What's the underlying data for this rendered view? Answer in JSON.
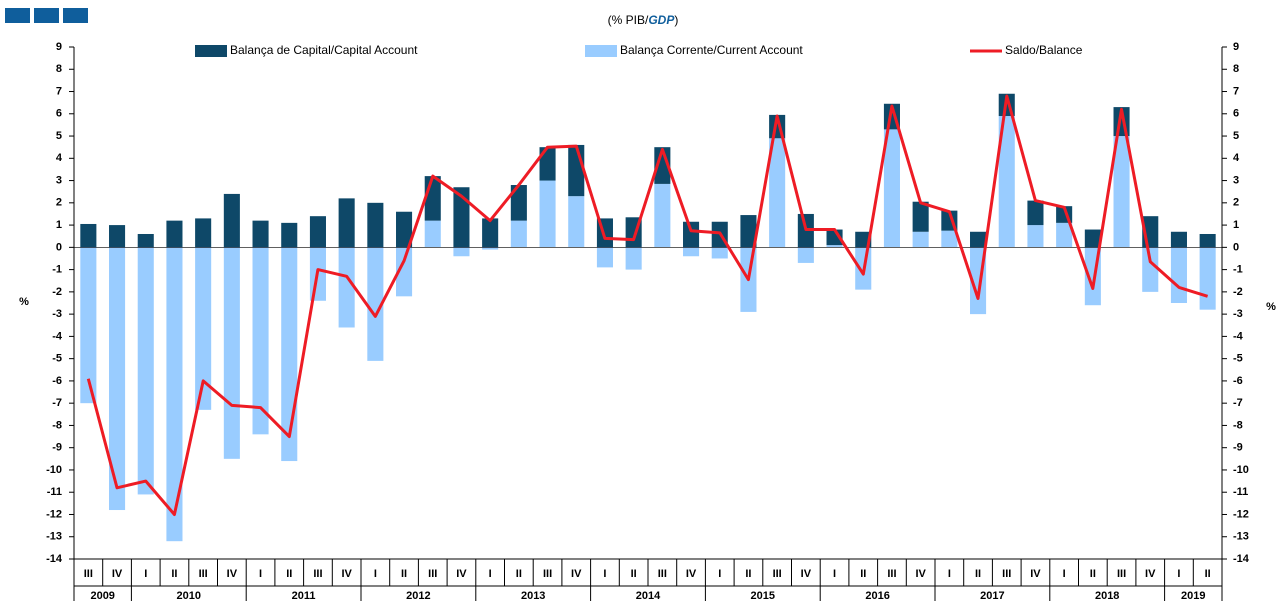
{
  "chart_data": {
    "type": "stacked_bar_line",
    "title": [
      "(% PIB/",
      "GDP",
      ")"
    ],
    "categories": [
      "III",
      "IV",
      "I",
      "II",
      "III",
      "IV",
      "I",
      "II",
      "III",
      "IV",
      "I",
      "II",
      "III",
      "IV",
      "I",
      "II",
      "III",
      "IV",
      "I",
      "II",
      "III",
      "IV",
      "I",
      "II",
      "III",
      "IV",
      "I",
      "II",
      "III",
      "IV",
      "I",
      "II",
      "III",
      "IV",
      "I",
      "II",
      "III",
      "IV",
      "I",
      "II"
    ],
    "years": [
      "2009",
      "2009",
      "2010",
      "2010",
      "2010",
      "2010",
      "2011",
      "2011",
      "2011",
      "2011",
      "2012",
      "2012",
      "2012",
      "2012",
      "2013",
      "2013",
      "2013",
      "2013",
      "2014",
      "2014",
      "2014",
      "2014",
      "2015",
      "2015",
      "2015",
      "2015",
      "2016",
      "2016",
      "2016",
      "2016",
      "2017",
      "2017",
      "2017",
      "2017",
      "2018",
      "2018",
      "2018",
      "2018",
      "2019",
      "2019"
    ],
    "series": [
      {
        "name": "Balança de Capital/Capital Account",
        "color": "#0e4868",
        "kind": "bar",
        "values": [
          1.05,
          1.0,
          0.6,
          1.2,
          1.3,
          2.4,
          1.2,
          1.1,
          1.4,
          2.2,
          2.0,
          1.6,
          2.0,
          2.7,
          1.3,
          1.6,
          1.5,
          2.3,
          1.3,
          1.35,
          1.65,
          1.15,
          1.15,
          1.45,
          1.05,
          1.5,
          0.7,
          0.7,
          1.15,
          1.35,
          0.9,
          0.7,
          1.0,
          1.1,
          0.75,
          0.8,
          1.3,
          1.4,
          0.7,
          0.6
        ]
      },
      {
        "name": "Balança Corrente/Current Account",
        "color": "#99ccff",
        "kind": "bar",
        "values": [
          -7.0,
          -11.8,
          -11.1,
          -13.2,
          -7.3,
          -9.5,
          -8.4,
          -9.6,
          -2.4,
          -3.6,
          -5.1,
          -2.2,
          1.2,
          -0.4,
          -0.1,
          1.2,
          3.0,
          2.3,
          -0.9,
          -1.0,
          2.85,
          -0.4,
          -0.5,
          -2.9,
          4.9,
          -0.7,
          0.1,
          -1.9,
          5.3,
          0.7,
          0.75,
          -3.0,
          5.9,
          1.0,
          1.1,
          -2.6,
          5.0,
          -2.0,
          -2.5,
          -2.8
        ]
      },
      {
        "name": "Saldo/Balance",
        "color": "#ee1c25",
        "kind": "line",
        "values": [
          -5.9,
          -10.8,
          -10.5,
          -12.0,
          -6.0,
          -7.1,
          -7.2,
          -8.5,
          -1.0,
          -1.3,
          -3.1,
          -0.6,
          3.2,
          2.3,
          1.2,
          2.8,
          4.5,
          4.55,
          0.4,
          0.35,
          4.4,
          0.75,
          0.65,
          -1.45,
          5.9,
          0.8,
          0.8,
          -1.2,
          6.35,
          2.0,
          1.6,
          -2.3,
          6.8,
          2.1,
          1.8,
          -1.85,
          6.2,
          -0.65,
          -1.8,
          -2.2
        ]
      }
    ],
    "ylabel": "%",
    "y2label": "%",
    "ylim": [
      -14,
      9
    ],
    "yticks": [
      -14,
      -13,
      -12,
      -11,
      -10,
      -9,
      -8,
      -7,
      -6,
      -5,
      -4,
      -3,
      -2,
      -1,
      0,
      1,
      2,
      3,
      4,
      5,
      6,
      7,
      8,
      9
    ],
    "y2lim": [
      -14,
      9
    ],
    "y2ticks": [
      -14,
      -13,
      -12,
      -11,
      -10,
      -9,
      -8,
      -7,
      -6,
      -5,
      -4,
      -3,
      -2,
      -1,
      0,
      1,
      2,
      3,
      4,
      5,
      6,
      7,
      8,
      9
    ],
    "grid": false,
    "legend": "top"
  }
}
